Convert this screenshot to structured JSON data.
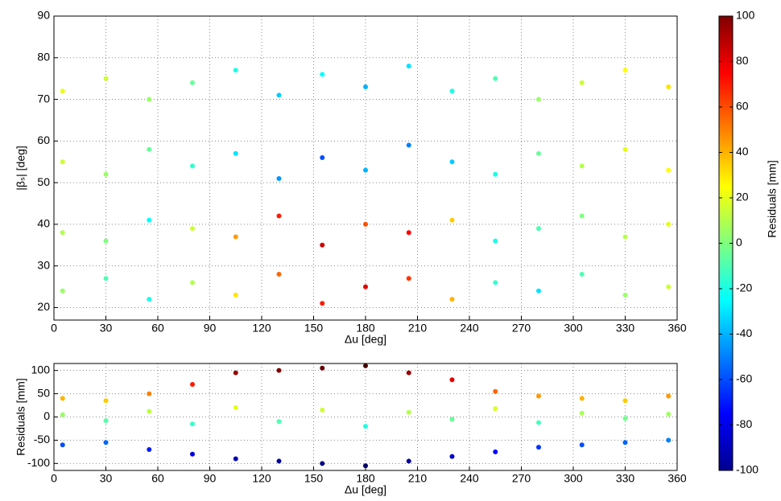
{
  "chart_data": [
    {
      "type": "scatter",
      "xlabel": "Δu [deg]",
      "ylabel": "|βₛ| [deg]",
      "xlim": [
        0,
        360
      ],
      "ylim": [
        17,
        90
      ],
      "xticks": [
        0,
        30,
        60,
        90,
        120,
        150,
        180,
        210,
        240,
        270,
        300,
        330,
        360
      ],
      "yticks": [
        20,
        30,
        40,
        50,
        60,
        70,
        80,
        90
      ],
      "grid": true,
      "x": [
        5,
        30,
        55,
        80,
        105,
        130,
        155,
        180,
        205,
        230,
        255,
        280,
        305,
        330,
        355,
        5,
        30,
        55,
        80,
        105,
        130,
        155,
        180,
        205,
        230,
        255,
        280,
        305,
        330,
        355,
        5,
        30,
        55,
        80,
        105,
        130,
        155,
        180,
        205,
        230,
        255,
        280,
        305,
        330,
        355,
        5,
        30,
        55,
        80,
        105,
        130,
        155,
        180,
        205,
        230,
        255,
        280,
        305,
        330,
        355
      ],
      "y": [
        24,
        27,
        22,
        26,
        23,
        28,
        21,
        25,
        27,
        22,
        26,
        24,
        28,
        23,
        25,
        38,
        36,
        41,
        39,
        37,
        42,
        35,
        40,
        38,
        41,
        36,
        39,
        42,
        37,
        40,
        55,
        52,
        58,
        54,
        57,
        51,
        56,
        53,
        59,
        55,
        52,
        57,
        54,
        58,
        53,
        72,
        75,
        70,
        74,
        77,
        71,
        76,
        73,
        78,
        72,
        75,
        70,
        74,
        77,
        73
      ],
      "c": [
        5,
        -10,
        -20,
        10,
        30,
        55,
        70,
        80,
        65,
        40,
        -15,
        -30,
        -10,
        5,
        15,
        10,
        0,
        -25,
        15,
        45,
        70,
        85,
        60,
        75,
        35,
        -20,
        -10,
        0,
        10,
        20,
        15,
        5,
        -5,
        -15,
        -30,
        -45,
        -60,
        -40,
        -50,
        -35,
        -20,
        -5,
        10,
        20,
        25,
        20,
        15,
        5,
        -5,
        -20,
        -35,
        -25,
        -40,
        -30,
        -20,
        -10,
        5,
        15,
        25,
        30
      ],
      "colorbar": {
        "label": "Residuals [mm]",
        "lim": [
          -100,
          100
        ],
        "ticks": [
          -100,
          -80,
          -60,
          -40,
          -20,
          0,
          20,
          40,
          60,
          80,
          100
        ]
      }
    },
    {
      "type": "scatter",
      "xlabel": "Δu [deg]",
      "ylabel": "Residuals [mm]",
      "xlim": [
        0,
        360
      ],
      "ylim": [
        -115,
        115
      ],
      "xticks": [
        0,
        30,
        60,
        90,
        120,
        150,
        180,
        210,
        240,
        270,
        300,
        330,
        360
      ],
      "yticks": [
        -100,
        -50,
        0,
        50,
        100
      ],
      "grid": true,
      "x": [
        5,
        30,
        55,
        80,
        105,
        130,
        155,
        180,
        205,
        230,
        255,
        280,
        305,
        330,
        355,
        5,
        30,
        55,
        80,
        105,
        130,
        155,
        180,
        205,
        230,
        255,
        280,
        305,
        330,
        355,
        5,
        30,
        55,
        80,
        105,
        130,
        155,
        180,
        205,
        230,
        255,
        280,
        305,
        330,
        355
      ],
      "y": [
        40,
        35,
        50,
        70,
        95,
        100,
        105,
        110,
        95,
        80,
        55,
        45,
        40,
        35,
        45,
        -60,
        -55,
        -70,
        -80,
        -90,
        -95,
        -100,
        -105,
        -95,
        -85,
        -75,
        -65,
        -60,
        -55,
        -50,
        5,
        -8,
        12,
        -15,
        20,
        -10,
        15,
        -20,
        10,
        -5,
        18,
        -12,
        8,
        -3,
        6
      ]
    }
  ]
}
